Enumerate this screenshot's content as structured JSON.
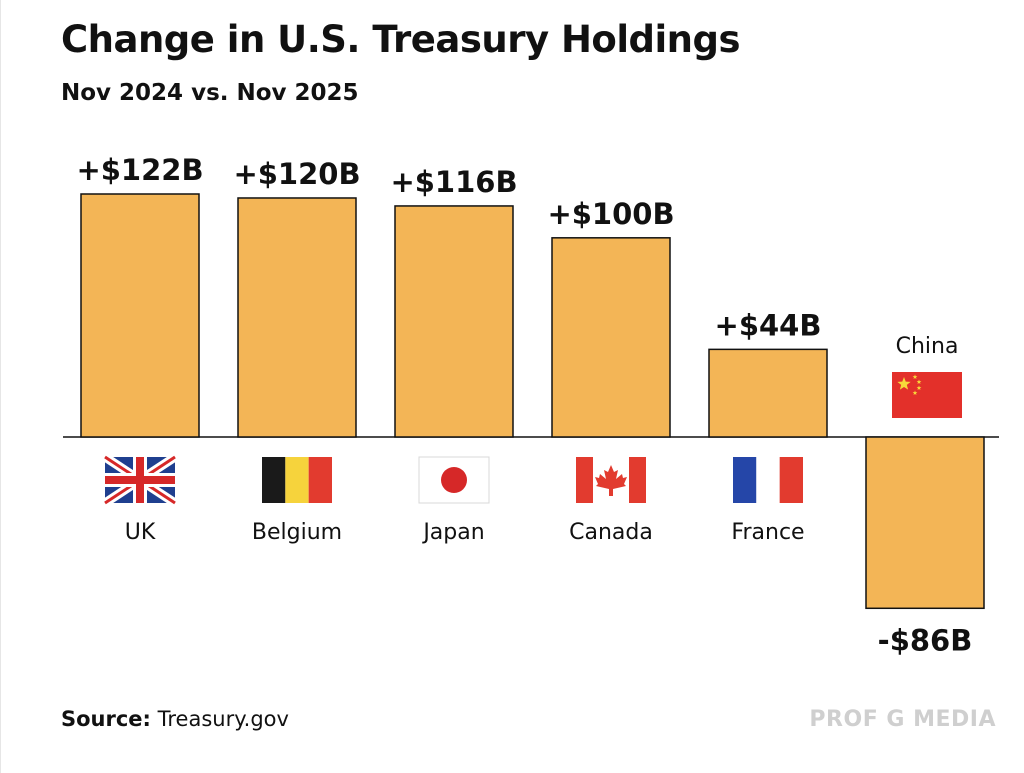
{
  "chart_data": {
    "type": "bar",
    "title": "Change in U.S. Treasury Holdings",
    "subtitle": "Nov 2024 vs. Nov 2025",
    "categories": [
      "UK",
      "Belgium",
      "Japan",
      "Canada",
      "France",
      "China"
    ],
    "values": [
      122,
      120,
      116,
      100,
      44,
      -86
    ],
    "data_labels": [
      "+$122B",
      "+$120B",
      "+$116B",
      "+$100B",
      "+$44B",
      "-$86B"
    ],
    "unit": "B",
    "xlabel": "",
    "ylabel": "",
    "ylim": [
      -86,
      122
    ],
    "grid": false,
    "legend": "none",
    "bar_color": "#f3b556"
  },
  "flags": [
    {
      "country": "UK",
      "icon": "uk-flag-icon"
    },
    {
      "country": "Belgium",
      "icon": "belgium-flag-icon"
    },
    {
      "country": "Japan",
      "icon": "japan-flag-icon"
    },
    {
      "country": "Canada",
      "icon": "canada-flag-icon"
    },
    {
      "country": "France",
      "icon": "france-flag-icon"
    },
    {
      "country": "China",
      "icon": "china-flag-icon"
    }
  ],
  "footer": {
    "source_label": "Source:",
    "source_value": "Treasury.gov",
    "brand": "PROF G MEDIA"
  }
}
